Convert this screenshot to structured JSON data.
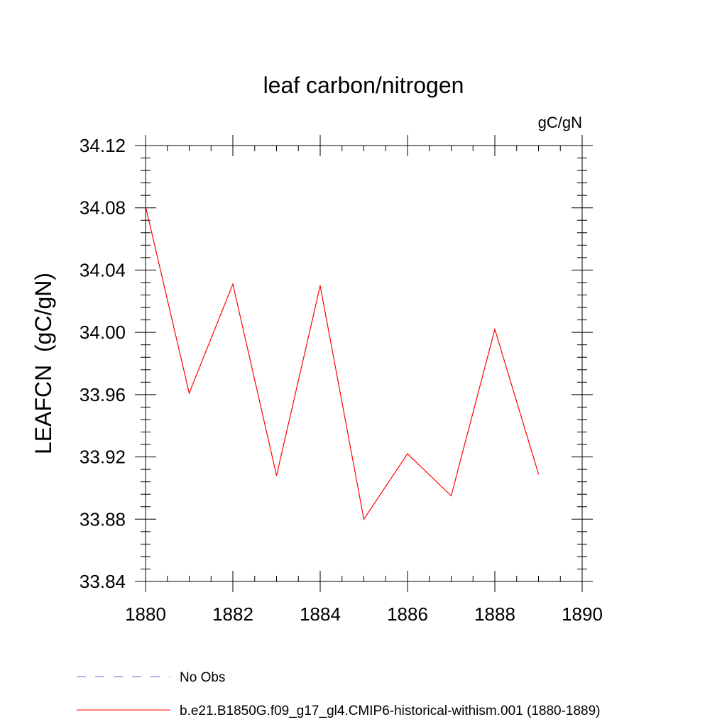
{
  "chart_data": {
    "type": "line",
    "title": "leaf carbon/nitrogen",
    "units": "gC/gN",
    "ylabel": "LEAFCN  (gC/gN)",
    "xlabel": "",
    "xlim": [
      1880,
      1890
    ],
    "ylim": [
      33.84,
      34.12
    ],
    "x_ticks": [
      1880,
      1882,
      1884,
      1886,
      1888,
      1890
    ],
    "x_tick_labels": [
      "1880",
      "1882",
      "1884",
      "1886",
      "1888",
      "1890"
    ],
    "y_ticks": [
      33.84,
      33.88,
      33.92,
      33.96,
      34.0,
      34.04,
      34.08,
      34.12
    ],
    "y_tick_labels": [
      "33.84",
      "33.88",
      "33.92",
      "33.96",
      "34.00",
      "34.04",
      "34.08",
      "34.12"
    ],
    "grid": false,
    "legend_position": "bottom-left",
    "series": [
      {
        "name": "b.e21.B1850G.f09_g17_gl4.CMIP6-historical-withism.001 (1880-1889)",
        "color": "#ff0000",
        "style": "solid",
        "x": [
          1880,
          1881,
          1882,
          1883,
          1884,
          1885,
          1886,
          1887,
          1888,
          1889
        ],
        "y": [
          34.081,
          33.961,
          34.031,
          33.908,
          34.03,
          33.88,
          33.922,
          33.895,
          34.002,
          33.909
        ]
      }
    ],
    "legend": [
      {
        "label": "No Obs",
        "color": "#6a6ad0",
        "style": "dashed"
      },
      {
        "label": "b.e21.B1850G.f09_g17_gl4.CMIP6-historical-withism.001 (1880-1889)",
        "color": "#ff0000",
        "style": "solid"
      }
    ]
  }
}
